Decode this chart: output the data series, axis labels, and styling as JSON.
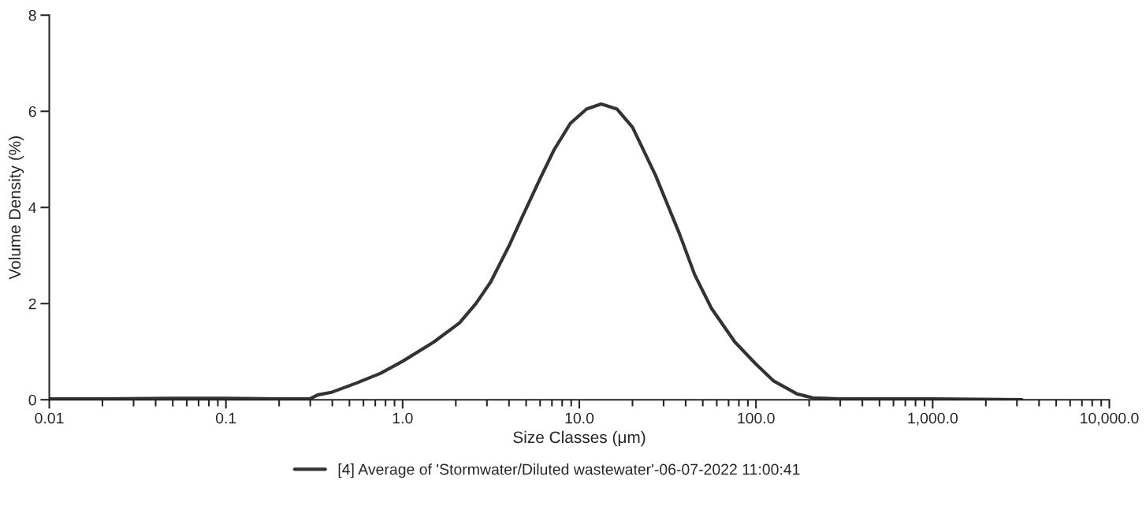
{
  "chart_data": {
    "type": "line",
    "xlabel": "Size Classes (μm)",
    "ylabel": "Volume Density (%)",
    "log": "x",
    "xlim": [
      0.01,
      10000
    ],
    "ylim": [
      0,
      8
    ],
    "xticks": [
      0.01,
      0.1,
      {
        "value": 1,
        "label": "1.0"
      },
      {
        "value": 10,
        "label": "10.0"
      },
      {
        "value": 100,
        "label": "100.0"
      },
      {
        "value": 1000,
        "label": "1,000.0"
      },
      {
        "value": 10000,
        "label": "10,000.0"
      }
    ],
    "yticks": [
      0,
      2,
      4,
      6,
      8
    ],
    "grid": false,
    "legend": "bottom",
    "marker": "none",
    "line_style": "solid",
    "series": [
      {
        "name": "[4] Average of 'Stormwater/Diluted wastewater'-06-07-2022 11:00:41",
        "color": "#333333",
        "x": [
          0.01,
          0.02,
          0.05,
          0.1,
          0.2,
          0.3,
          0.33,
          0.4,
          0.55,
          0.75,
          1.0,
          1.5,
          2.1,
          2.6,
          3.15,
          4.0,
          4.75,
          6.0,
          7.2,
          8.9,
          11,
          13.3,
          16.3,
          20,
          27,
          37,
          45,
          56,
          76,
          100,
          126,
          171,
          210,
          300,
          1000,
          3200
        ],
        "values": [
          0.02,
          0.02,
          0.03,
          0.03,
          0.02,
          0.02,
          0.1,
          0.16,
          0.35,
          0.55,
          0.8,
          1.2,
          1.6,
          2.0,
          2.45,
          3.2,
          3.8,
          4.6,
          5.2,
          5.75,
          6.05,
          6.15,
          6.05,
          5.67,
          4.67,
          3.44,
          2.6,
          1.9,
          1.2,
          0.74,
          0.39,
          0.12,
          0.04,
          0.02,
          0.02,
          0.0
        ]
      }
    ]
  }
}
